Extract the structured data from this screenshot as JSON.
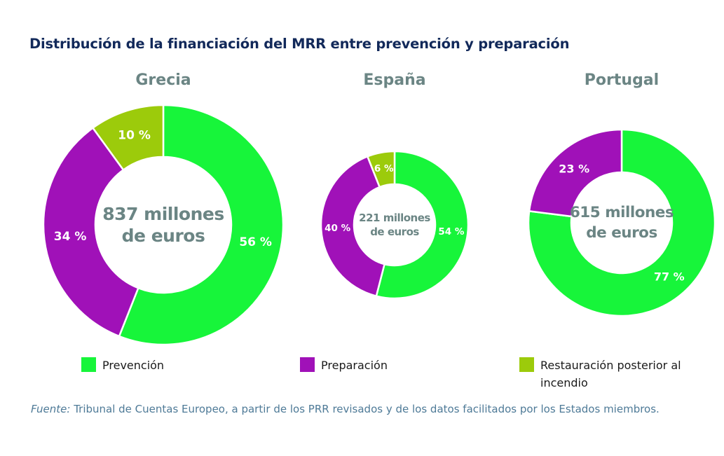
{
  "title": "Distribución de la financiación del MRR entre prevención y preparación",
  "colors": {
    "prevencion": "#17f53a",
    "preparacion": "#a011b8",
    "restauracion": "#9ccb0b",
    "title": "#12295a",
    "country_label": "#6b8584",
    "center_text": "#6b8584",
    "slice_label": "#ffffff",
    "source_text": "#4e7a97"
  },
  "legend": [
    {
      "key": "prevencion",
      "label": "Prevención"
    },
    {
      "key": "preparacion",
      "label": "Preparación"
    },
    {
      "key": "restauracion",
      "label": "Restauración posterior al incendio"
    }
  ],
  "source": {
    "prefix": "Fuente:",
    "text": " Tribunal de Cuentas Europeo, a partir de los PRR revisados y de los datos facilitados por los Estados miembros."
  },
  "chart_data": [
    {
      "type": "pie",
      "variant": "donut",
      "title": "Grecia",
      "center_label": [
        "837 millones",
        "de euros"
      ],
      "total": 837,
      "unit": "millones de euros",
      "slices": [
        {
          "key": "prevencion",
          "name": "Prevención",
          "value": 56,
          "label": "56 %"
        },
        {
          "key": "preparacion",
          "name": "Preparación",
          "value": 34,
          "label": "34 %"
        },
        {
          "key": "restauracion",
          "name": "Restauración posterior al incendio",
          "value": 10,
          "label": "10 %"
        }
      ]
    },
    {
      "type": "pie",
      "variant": "donut",
      "title": "España",
      "center_label": [
        "221 millones",
        "de euros"
      ],
      "total": 221,
      "unit": "millones de euros",
      "slices": [
        {
          "key": "prevencion",
          "name": "Prevención",
          "value": 54,
          "label": "54 %"
        },
        {
          "key": "preparacion",
          "name": "Preparación",
          "value": 40,
          "label": "40 %"
        },
        {
          "key": "restauracion",
          "name": "Restauración posterior al incendio",
          "value": 6,
          "label": "6 %"
        }
      ]
    },
    {
      "type": "pie",
      "variant": "donut",
      "title": "Portugal",
      "center_label": [
        "615 millones",
        "de euros"
      ],
      "total": 615,
      "unit": "millones de euros",
      "slices": [
        {
          "key": "prevencion",
          "name": "Prevención",
          "value": 77,
          "label": "77 %"
        },
        {
          "key": "preparacion",
          "name": "Preparación",
          "value": 23,
          "label": "23 %"
        }
      ]
    }
  ]
}
